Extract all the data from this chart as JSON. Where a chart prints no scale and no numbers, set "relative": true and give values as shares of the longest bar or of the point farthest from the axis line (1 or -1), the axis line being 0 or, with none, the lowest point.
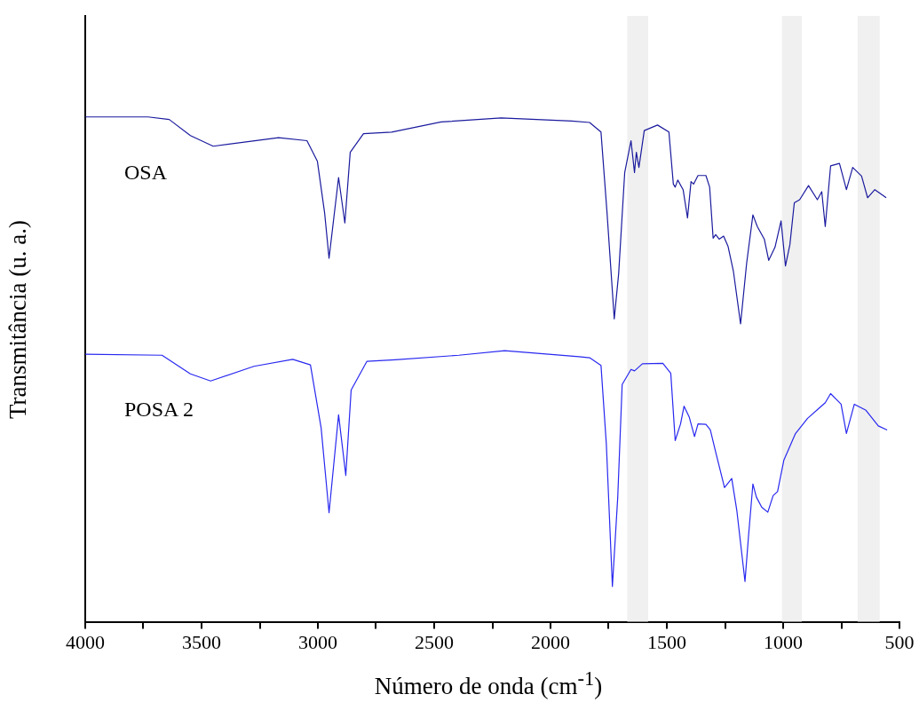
{
  "chart_data": {
    "type": "line",
    "relative": true,
    "xlabel": "Número de onda (cm$^{-1}$)",
    "ylabel": "Transmitância (u. a.)",
    "xlim": [
      4000,
      500
    ],
    "xticks": [
      4000,
      {
        "value": 3750,
        "label": null
      },
      3500,
      {
        "value": 3250,
        "label": null
      },
      3000,
      {
        "value": 2750,
        "label": null
      },
      2500,
      {
        "value": 2250,
        "label": null
      },
      2000,
      {
        "value": 1750,
        "label": null
      },
      1500,
      {
        "value": 1250,
        "label": null
      },
      1000,
      {
        "value": 750,
        "label": null
      },
      500
    ],
    "legend": false,
    "grid": false,
    "marker": "none",
    "line_style": "solid",
    "bands": [
      {
        "axis": "x",
        "from": 1670,
        "to": 1580,
        "color": "#f0f0f0"
      },
      {
        "axis": "x",
        "from": 1005,
        "to": 920,
        "color": "#f0f0f0"
      },
      {
        "axis": "x",
        "from": 680,
        "to": 585,
        "color": "#f0f0f0"
      }
    ],
    "series": [
      {
        "name": "OSA",
        "color": "#1a1a9e",
        "x": [
          4000,
          3730,
          3639,
          3548,
          3450,
          3169,
          3047,
          3002,
          2971,
          2952,
          2911,
          2884,
          2861,
          2804,
          2683,
          2470,
          2212,
          1908,
          1832,
          1783,
          1757,
          1726,
          1707,
          1681,
          1654,
          1639,
          1631,
          1620,
          1597,
          1540,
          1491,
          1472,
          1464,
          1453,
          1430,
          1411,
          1396,
          1385,
          1366,
          1332,
          1316,
          1301,
          1290,
          1275,
          1256,
          1237,
          1214,
          1183,
          1157,
          1130,
          1111,
          1081,
          1062,
          1035,
          1009,
          990,
          971,
          952,
          929,
          891,
          853,
          834,
          819,
          796,
          758,
          728,
          701,
          663,
          637,
          606,
          557
        ],
        "values": [
          1.0,
          1.0,
          0.995,
          0.963,
          0.942,
          0.959,
          0.953,
          0.912,
          0.81,
          0.72,
          0.88,
          0.79,
          0.93,
          0.967,
          0.97,
          0.99,
          0.998,
          0.992,
          0.989,
          0.97,
          0.81,
          0.6,
          0.69,
          0.89,
          0.953,
          0.89,
          0.93,
          0.9,
          0.973,
          0.984,
          0.97,
          0.867,
          0.861,
          0.875,
          0.856,
          0.8,
          0.872,
          0.867,
          0.884,
          0.884,
          0.861,
          0.76,
          0.767,
          0.758,
          0.764,
          0.744,
          0.695,
          0.59,
          0.71,
          0.806,
          0.783,
          0.758,
          0.716,
          0.742,
          0.794,
          0.705,
          0.747,
          0.83,
          0.836,
          0.864,
          0.836,
          0.852,
          0.783,
          0.903,
          0.908,
          0.856,
          0.9,
          0.883,
          0.84,
          0.856,
          0.84
        ]
      },
      {
        "name": "POSA 2",
        "color": "#2828f0",
        "x": [
          4000,
          3670,
          3548,
          3461,
          3275,
          3108,
          3032,
          2986,
          2952,
          2911,
          2880,
          2857,
          2789,
          2668,
          2394,
          2197,
          1878,
          1832,
          1783,
          1760,
          1734,
          1711,
          1692,
          1654,
          1639,
          1605,
          1517,
          1483,
          1464,
          1441,
          1426,
          1404,
          1381,
          1366,
          1332,
          1313,
          1290,
          1252,
          1221,
          1199,
          1164,
          1149,
          1130,
          1115,
          1092,
          1066,
          1043,
          1024,
          997,
          948,
          895,
          846,
          819,
          796,
          751,
          728,
          694,
          644,
          591,
          553
        ],
        "values": [
          0.53,
          0.528,
          0.491,
          0.477,
          0.506,
          0.52,
          0.509,
          0.384,
          0.216,
          0.41,
          0.29,
          0.459,
          0.516,
          0.519,
          0.528,
          0.537,
          0.525,
          0.523,
          0.508,
          0.352,
          0.07,
          0.247,
          0.47,
          0.5,
          0.497,
          0.511,
          0.512,
          0.492,
          0.359,
          0.392,
          0.427,
          0.406,
          0.367,
          0.392,
          0.391,
          0.38,
          0.336,
          0.266,
          0.284,
          0.22,
          0.08,
          0.169,
          0.273,
          0.247,
          0.227,
          0.217,
          0.25,
          0.258,
          0.32,
          0.372,
          0.403,
          0.423,
          0.434,
          0.452,
          0.431,
          0.373,
          0.431,
          0.419,
          0.388,
          0.38
        ]
      }
    ]
  }
}
